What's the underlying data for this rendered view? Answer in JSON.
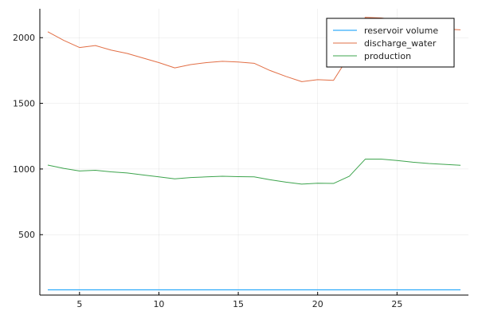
{
  "chart_data": {
    "type": "line",
    "title": "",
    "xlabel": "",
    "ylabel": "",
    "xlim": [
      2.5,
      29.5
    ],
    "ylim": [
      40,
      2220
    ],
    "x_ticks": [
      5,
      10,
      15,
      20,
      25
    ],
    "y_ticks": [
      500,
      1000,
      1500,
      2000
    ],
    "grid": true,
    "legend_position": "top-right",
    "x": [
      3,
      4,
      5,
      6,
      7,
      8,
      9,
      10,
      11,
      12,
      13,
      14,
      15,
      16,
      17,
      18,
      19,
      20,
      21,
      22,
      23,
      24,
      25,
      26,
      27,
      28,
      29
    ],
    "series": [
      {
        "name": "reservoir volume",
        "color": "#009AFA",
        "values": [
          80,
          80,
          80,
          80,
          80,
          80,
          80,
          80,
          80,
          80,
          80,
          80,
          80,
          80,
          80,
          80,
          80,
          80,
          80,
          80,
          80,
          80,
          80,
          80,
          80,
          80,
          80
        ]
      },
      {
        "name": "discharge_water",
        "color": "#E26F46",
        "values": [
          2045,
          1980,
          1925,
          1940,
          1905,
          1880,
          1845,
          1810,
          1770,
          1795,
          1810,
          1820,
          1815,
          1805,
          1750,
          1705,
          1665,
          1680,
          1675,
          1865,
          2155,
          2150,
          2135,
          2110,
          2085,
          2065,
          2060
        ]
      },
      {
        "name": "production",
        "color": "#3DA44D",
        "values": [
          1030,
          1005,
          985,
          990,
          978,
          970,
          955,
          940,
          925,
          935,
          940,
          945,
          942,
          940,
          918,
          900,
          885,
          892,
          890,
          945,
          1075,
          1075,
          1065,
          1052,
          1042,
          1035,
          1028
        ]
      }
    ]
  }
}
